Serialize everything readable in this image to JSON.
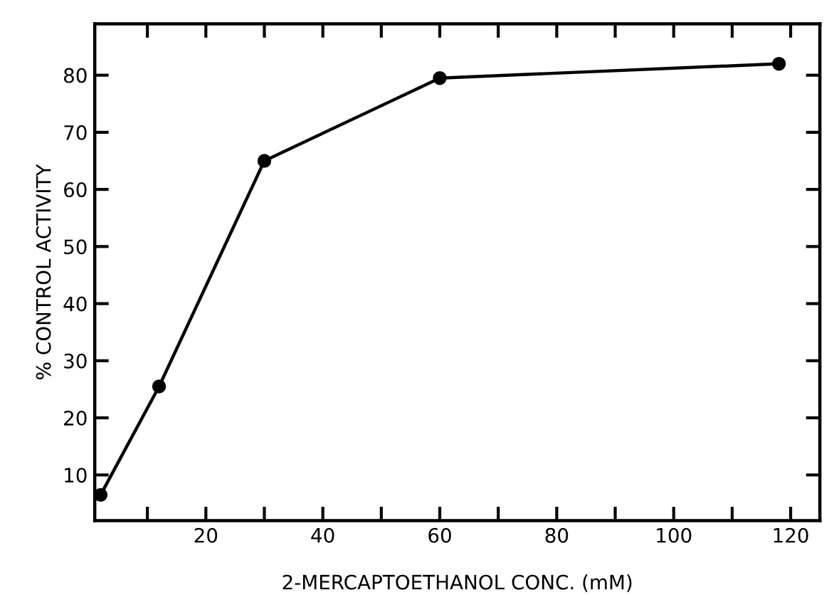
{
  "chart_data": {
    "type": "line",
    "xlabel": "2-MERCAPTOETHANOL CONC. (mM)",
    "ylabel": "% CONTROL ACTIVITY",
    "x": [
      2,
      12,
      30,
      60,
      118
    ],
    "series": [
      {
        "color": "#000000",
        "values": [
          6.5,
          25.5,
          65,
          79.5,
          82
        ]
      }
    ],
    "marker": "circle",
    "line_style": "solid",
    "grid": false,
    "legend": false,
    "xlim": [
      1,
      125
    ],
    "ylim": [
      2,
      89
    ],
    "xticks": [
      {
        "value": 10,
        "label": null
      },
      20,
      {
        "value": 30,
        "label": null
      },
      40,
      {
        "value": 50,
        "label": null
      },
      60,
      {
        "value": 70,
        "label": null
      },
      80,
      {
        "value": 90,
        "label": null
      },
      100,
      {
        "value": 110,
        "label": null
      },
      120
    ],
    "yticks": [
      10,
      20,
      30,
      40,
      50,
      60,
      70,
      80
    ]
  }
}
